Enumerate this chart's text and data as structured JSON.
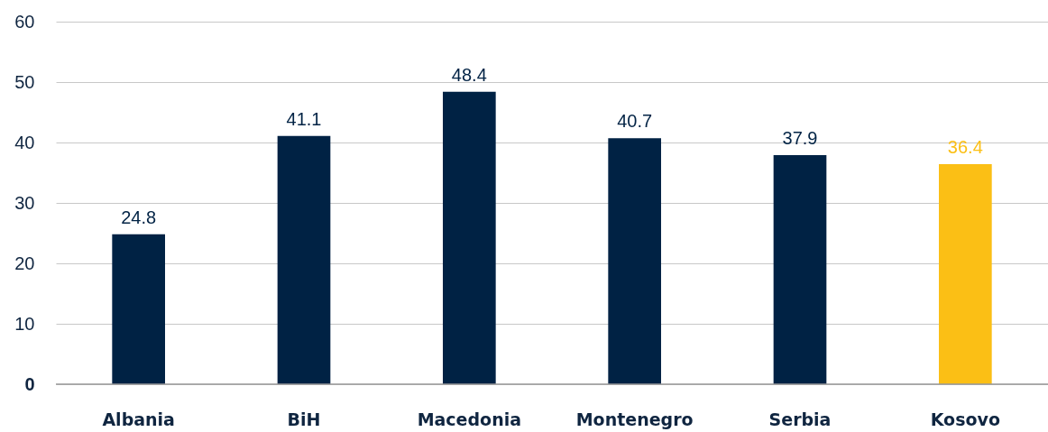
{
  "chart_data": {
    "type": "bar",
    "categories": [
      "Albania",
      "BiH",
      "Macedonia",
      "Montenegro",
      "Serbia",
      "Kosovo"
    ],
    "values": [
      24.8,
      41.1,
      48.4,
      40.7,
      37.9,
      36.4
    ],
    "colors": [
      "#002244",
      "#002244",
      "#002244",
      "#002244",
      "#002244",
      "#fbbf15"
    ],
    "ylim": [
      0,
      60
    ],
    "yticks": [
      0,
      10,
      20,
      30,
      40,
      50,
      60
    ],
    "grid": "y",
    "data_labels": true
  }
}
